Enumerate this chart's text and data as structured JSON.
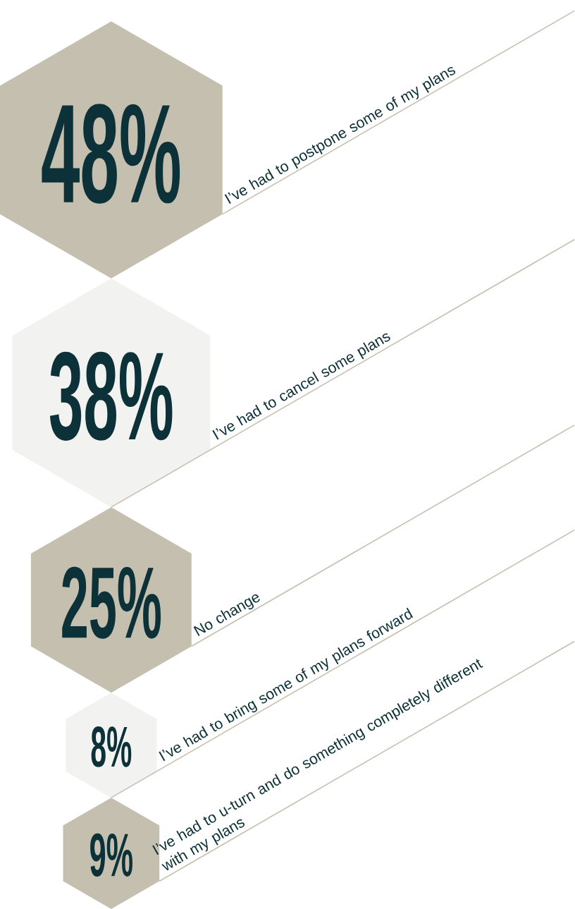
{
  "chart_data": {
    "type": "other",
    "categories": [
      "I’ve had to postpone some of my plans",
      "I’ve had to cancel some  plans",
      "No change",
      "I’ve had to bring some of my plans forward",
      "I’ve had to  u-turn and do something completely different with my plans"
    ],
    "values": [
      48,
      38,
      25,
      8,
      9
    ],
    "value_labels": [
      "48%",
      "38%",
      "25%",
      "8%",
      "9%"
    ],
    "colors": [
      "#c4bfae",
      "#f2f2f0",
      "#c4bfae",
      "#f2f2f0",
      "#c4bfae"
    ]
  }
}
